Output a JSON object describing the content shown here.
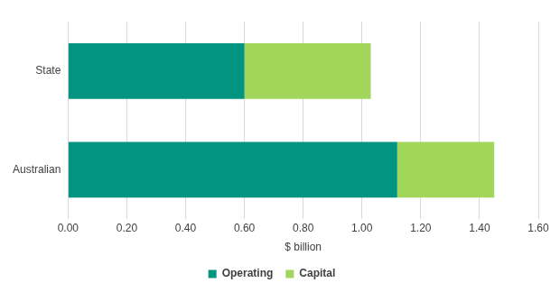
{
  "chart_data": {
    "type": "bar",
    "orientation": "horizontal",
    "stacked": true,
    "categories": [
      "State",
      "Australian"
    ],
    "series": [
      {
        "name": "Operating",
        "color": "#009481",
        "values": [
          0.6,
          1.12
        ]
      },
      {
        "name": "Capital",
        "color": "#a2d65b",
        "values": [
          0.43,
          0.33
        ]
      }
    ],
    "xlabel": "$ billion",
    "xlim": [
      0,
      1.6
    ],
    "xticks": [
      {
        "value": 0,
        "label": "0.00"
      },
      {
        "value": 0.2,
        "label": "0.20"
      },
      {
        "value": 0.4,
        "label": "0.40"
      },
      {
        "value": 0.6,
        "label": "0.60"
      },
      {
        "value": 0.8,
        "label": "0.80"
      },
      {
        "value": 1.0,
        "label": "1.00"
      },
      {
        "value": 1.2,
        "label": "1.20"
      },
      {
        "value": 1.4,
        "label": "1.40"
      },
      {
        "value": 1.6,
        "label": "1.60"
      }
    ],
    "grid": true,
    "legend": "bottom"
  }
}
